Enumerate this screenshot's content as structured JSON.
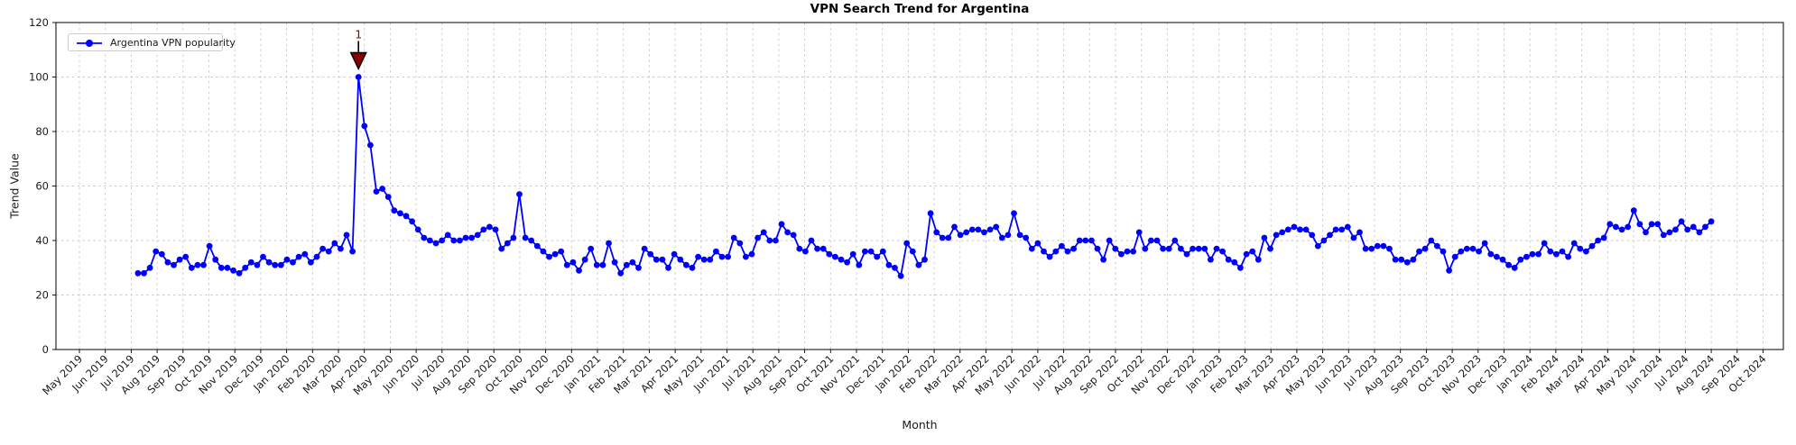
{
  "figure": {
    "title": "VPN Search Trend for Argentina",
    "xlabel": "Month",
    "ylabel": "Trend Value",
    "legend": {
      "label": "Argentina VPN popularity",
      "position": "upper left"
    }
  },
  "colors": {
    "line": "#0000ff",
    "annotation": "#8b0000",
    "grid": "#c9c9c9",
    "background": "#ffffff",
    "text": "#1a1a1a"
  },
  "chart_data": {
    "type": "line",
    "title": "VPN Search Trend for Argentina",
    "xlabel": "Month",
    "ylabel": "Trend Value",
    "ylim": [
      0,
      120
    ],
    "yticks": [
      0,
      20,
      40,
      60,
      80,
      100,
      120
    ],
    "grid": true,
    "legend_position": "upper left",
    "x_unit": "weekly",
    "x_month_span": [
      2.26,
      63.0
    ],
    "xtick_labels": [
      "May 2019",
      "Jun 2019",
      "Jul 2019",
      "Aug 2019",
      "Sep 2019",
      "Oct 2019",
      "Nov 2019",
      "Dec 2019",
      "Jan 2020",
      "Feb 2020",
      "Mar 2020",
      "Apr 2020",
      "May 2020",
      "Jun 2020",
      "Jul 2020",
      "Aug 2020",
      "Sep 2020",
      "Oct 2020",
      "Nov 2020",
      "Dec 2020",
      "Jan 2021",
      "Feb 2021",
      "Mar 2021",
      "Apr 2021",
      "May 2021",
      "Jun 2021",
      "Jul 2021",
      "Aug 2021",
      "Sep 2021",
      "Oct 2021",
      "Nov 2021",
      "Dec 2021",
      "Jan 2022",
      "Feb 2022",
      "Mar 2022",
      "Apr 2022",
      "May 2022",
      "Jun 2022",
      "Jul 2022",
      "Aug 2022",
      "Sep 2022",
      "Oct 2022",
      "Nov 2022",
      "Dec 2022",
      "Jan 2023",
      "Feb 2023",
      "Mar 2023",
      "Apr 2023",
      "May 2023",
      "Jun 2023",
      "Jul 2023",
      "Aug 2023",
      "Sep 2023",
      "Oct 2023",
      "Nov 2023",
      "Dec 2023",
      "Jan 2024",
      "Feb 2024",
      "Mar 2024",
      "Apr 2024",
      "May 2024",
      "Jun 2024",
      "Jul 2024",
      "Aug 2024",
      "Sep 2024",
      "Oct 2024"
    ],
    "series": [
      {
        "name": "Argentina VPN popularity",
        "color": "#0000ff",
        "marker": "circle",
        "values": [
          28,
          28,
          30,
          36,
          35,
          32,
          31,
          33,
          34,
          30,
          31,
          31,
          38,
          33,
          30,
          30,
          29,
          28,
          30,
          32,
          31,
          34,
          32,
          31,
          31,
          33,
          32,
          34,
          35,
          32,
          34,
          37,
          36,
          39,
          37,
          42,
          36,
          100,
          82,
          75,
          58,
          59,
          56,
          51,
          50,
          49,
          47,
          44,
          41,
          40,
          39,
          40,
          42,
          40,
          40,
          41,
          41,
          42,
          44,
          45,
          44,
          37,
          39,
          41,
          57,
          41,
          40,
          38,
          36,
          34,
          35,
          36,
          31,
          32,
          29,
          33,
          37,
          31,
          31,
          39,
          32,
          28,
          31,
          32,
          30,
          37,
          35,
          33,
          33,
          30,
          35,
          33,
          31,
          30,
          34,
          33,
          33,
          36,
          34,
          34,
          41,
          39,
          34,
          35,
          41,
          43,
          40,
          40,
          46,
          43,
          42,
          37,
          36,
          40,
          37,
          37,
          35,
          34,
          33,
          32,
          35,
          31,
          36,
          36,
          34,
          36,
          31,
          30,
          27,
          39,
          36,
          31,
          33,
          50,
          43,
          41,
          41,
          45,
          42,
          43,
          44,
          44,
          43,
          44,
          45,
          41,
          42,
          50,
          42,
          41,
          37,
          39,
          36,
          34,
          36,
          38,
          36,
          37,
          40,
          40,
          40,
          37,
          33,
          40,
          37,
          35,
          36,
          36,
          43,
          37,
          40,
          40,
          37,
          37,
          40,
          37,
          35,
          37,
          37,
          37,
          33,
          37,
          36,
          33,
          32,
          30,
          35,
          36,
          33,
          41,
          37,
          42,
          43,
          44,
          45,
          44,
          44,
          42,
          38,
          40,
          42,
          44,
          44,
          45,
          41,
          43,
          37,
          37,
          38,
          38,
          37,
          33,
          33,
          32,
          33,
          36,
          37,
          40,
          38,
          36,
          29,
          34,
          36,
          37,
          37,
          36,
          39,
          35,
          34,
          33,
          31,
          30,
          33,
          34,
          35,
          35,
          39,
          36,
          35,
          36,
          34,
          39,
          37,
          36,
          38,
          40,
          41,
          46,
          45,
          44,
          45,
          51,
          46,
          43,
          46,
          46,
          42,
          43,
          44,
          47,
          44,
          45,
          43,
          45,
          47
        ]
      }
    ],
    "annotation": {
      "label": "1",
      "series_index": 37,
      "value": 100,
      "marker": "triangle-down",
      "color": "#8b0000"
    }
  }
}
